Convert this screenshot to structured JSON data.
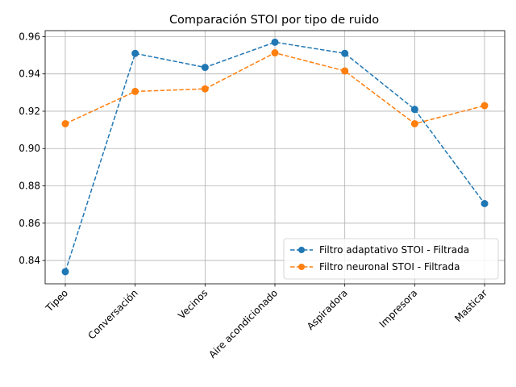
{
  "chart_data": {
    "type": "line",
    "title": "Comparación STOI por tipo de ruido",
    "xlabel": "",
    "ylabel": "",
    "categories": [
      "Tipeo",
      "Conversación",
      "Vecinos",
      "Aire acondicionado",
      "Aspiradora",
      "Impresora",
      "Masticar"
    ],
    "ylim": [
      0.8275,
      0.9632
    ],
    "yticks": [
      0.84,
      0.86,
      0.88,
      0.9,
      0.92,
      0.94,
      0.96
    ],
    "ytick_labels": [
      "0.84",
      "0.86",
      "0.88",
      "0.90",
      "0.92",
      "0.94",
      "0.96"
    ],
    "grid": true,
    "legend_position": "lower-right",
    "series": [
      {
        "name": "Filtro adaptativo STOI - Filtrada",
        "color": "#1f77b4",
        "line_style": "dashed",
        "marker": "circle",
        "values": [
          0.834,
          0.951,
          0.9435,
          0.957,
          0.951,
          0.921,
          0.8705
        ]
      },
      {
        "name": "Filtro neuronal STOI - Filtrada",
        "color": "#ff7f0e",
        "line_style": "dashed",
        "marker": "circle",
        "values": [
          0.9133,
          0.9306,
          0.932,
          0.9513,
          0.9416,
          0.9133,
          0.923
        ]
      }
    ]
  }
}
